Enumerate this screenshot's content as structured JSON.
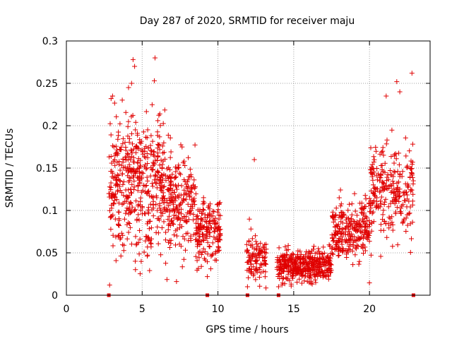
{
  "chart_data": {
    "type": "scatter",
    "title": "Day 287 of 2020, SRMTID for receiver maju",
    "xlabel": "GPS time / hours",
    "ylabel": "SRMTID / TECUs",
    "xlim": [
      0,
      24
    ],
    "ylim": [
      0,
      0.3
    ],
    "x_ticks": [
      0,
      5,
      10,
      15,
      20
    ],
    "y_ticks": [
      0,
      0.05,
      0.1,
      0.15,
      0.2,
      0.25,
      0.3
    ],
    "x_tick_labels": [
      "0",
      "5",
      "10",
      "15",
      "20"
    ],
    "y_tick_labels": [
      "0",
      "0.05",
      "0.1",
      "0.15",
      "0.2",
      "0.25",
      "0.3"
    ],
    "grid": true,
    "marker": "plus",
    "color": "#e00000",
    "series": [
      {
        "name": "SRMTID",
        "clusters": [
          {
            "x_range": [
              2.8,
              4.5
            ],
            "y_center": 0.13,
            "y_spread": 0.05,
            "count": 220
          },
          {
            "x_range": [
              4.5,
              6.5
            ],
            "y_center": 0.135,
            "y_spread": 0.055,
            "count": 260
          },
          {
            "x_range": [
              6.5,
              8.5
            ],
            "y_center": 0.11,
            "y_spread": 0.04,
            "count": 220
          },
          {
            "x_range": [
              8.5,
              10.2
            ],
            "y_center": 0.075,
            "y_spread": 0.025,
            "count": 180
          },
          {
            "x_range": [
              11.9,
              13.2
            ],
            "y_center": 0.045,
            "y_spread": 0.018,
            "count": 110
          },
          {
            "x_range": [
              13.9,
              17.5
            ],
            "y_center": 0.035,
            "y_spread": 0.012,
            "count": 420
          },
          {
            "x_range": [
              17.5,
              20.0
            ],
            "y_center": 0.075,
            "y_spread": 0.022,
            "count": 260
          },
          {
            "x_range": [
              20.0,
              22.9
            ],
            "y_center": 0.12,
            "y_spread": 0.04,
            "count": 260
          }
        ],
        "outliers": [
          {
            "x": 2.85,
            "y": 0.012
          },
          {
            "x": 4.4,
            "y": 0.278
          },
          {
            "x": 4.5,
            "y": 0.27
          },
          {
            "x": 5.85,
            "y": 0.28
          },
          {
            "x": 5.8,
            "y": 0.253
          },
          {
            "x": 4.3,
            "y": 0.25
          },
          {
            "x": 4.1,
            "y": 0.245
          },
          {
            "x": 12.4,
            "y": 0.16
          },
          {
            "x": 11.95,
            "y": 0.01
          },
          {
            "x": 22.8,
            "y": 0.262
          },
          {
            "x": 21.8,
            "y": 0.252
          },
          {
            "x": 21.1,
            "y": 0.235
          },
          {
            "x": 22.0,
            "y": 0.24
          },
          {
            "x": 2.95,
            "y": 0.232
          },
          {
            "x": 3.05,
            "y": 0.235
          },
          {
            "x": 9.3,
            "y": 0.022
          },
          {
            "x": 14.0,
            "y": 0.01
          }
        ],
        "baseline_markers": [
          2.8,
          9.3,
          11.95,
          14.0,
          22.9
        ]
      }
    ]
  }
}
